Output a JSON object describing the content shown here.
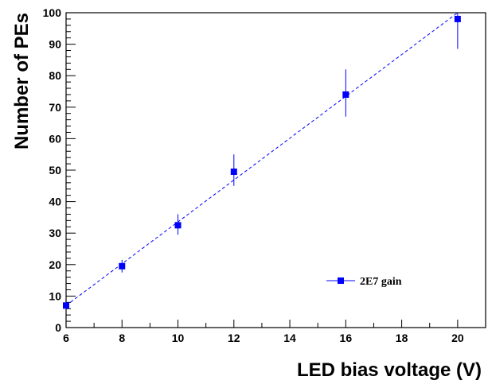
{
  "chart_data": {
    "type": "scatter",
    "xlabel": "LED bias voltage (V)",
    "ylabel": "Number of PEs",
    "xlim": [
      6,
      21
    ],
    "ylim": [
      0,
      100
    ],
    "x_ticks": [
      6,
      8,
      10,
      12,
      14,
      16,
      18,
      20
    ],
    "y_ticks": [
      0,
      10,
      20,
      30,
      40,
      50,
      60,
      70,
      80,
      90,
      100
    ],
    "grid": false,
    "legend_position": "bottom-right",
    "series": [
      {
        "name": "2E7 gain",
        "color": "#0000ff",
        "marker": "square",
        "x": [
          6,
          8,
          10,
          12,
          16,
          20
        ],
        "y": [
          7,
          19.5,
          32.5,
          49.5,
          74,
          98
        ],
        "err_low": [
          6,
          17.5,
          29.5,
          45,
          67,
          88.5
        ],
        "err_high": [
          8,
          21.5,
          36,
          55,
          82,
          100
        ],
        "fit": {
          "style": "dashed",
          "x": [
            6,
            20
          ],
          "y": [
            7,
            100
          ]
        }
      }
    ]
  }
}
